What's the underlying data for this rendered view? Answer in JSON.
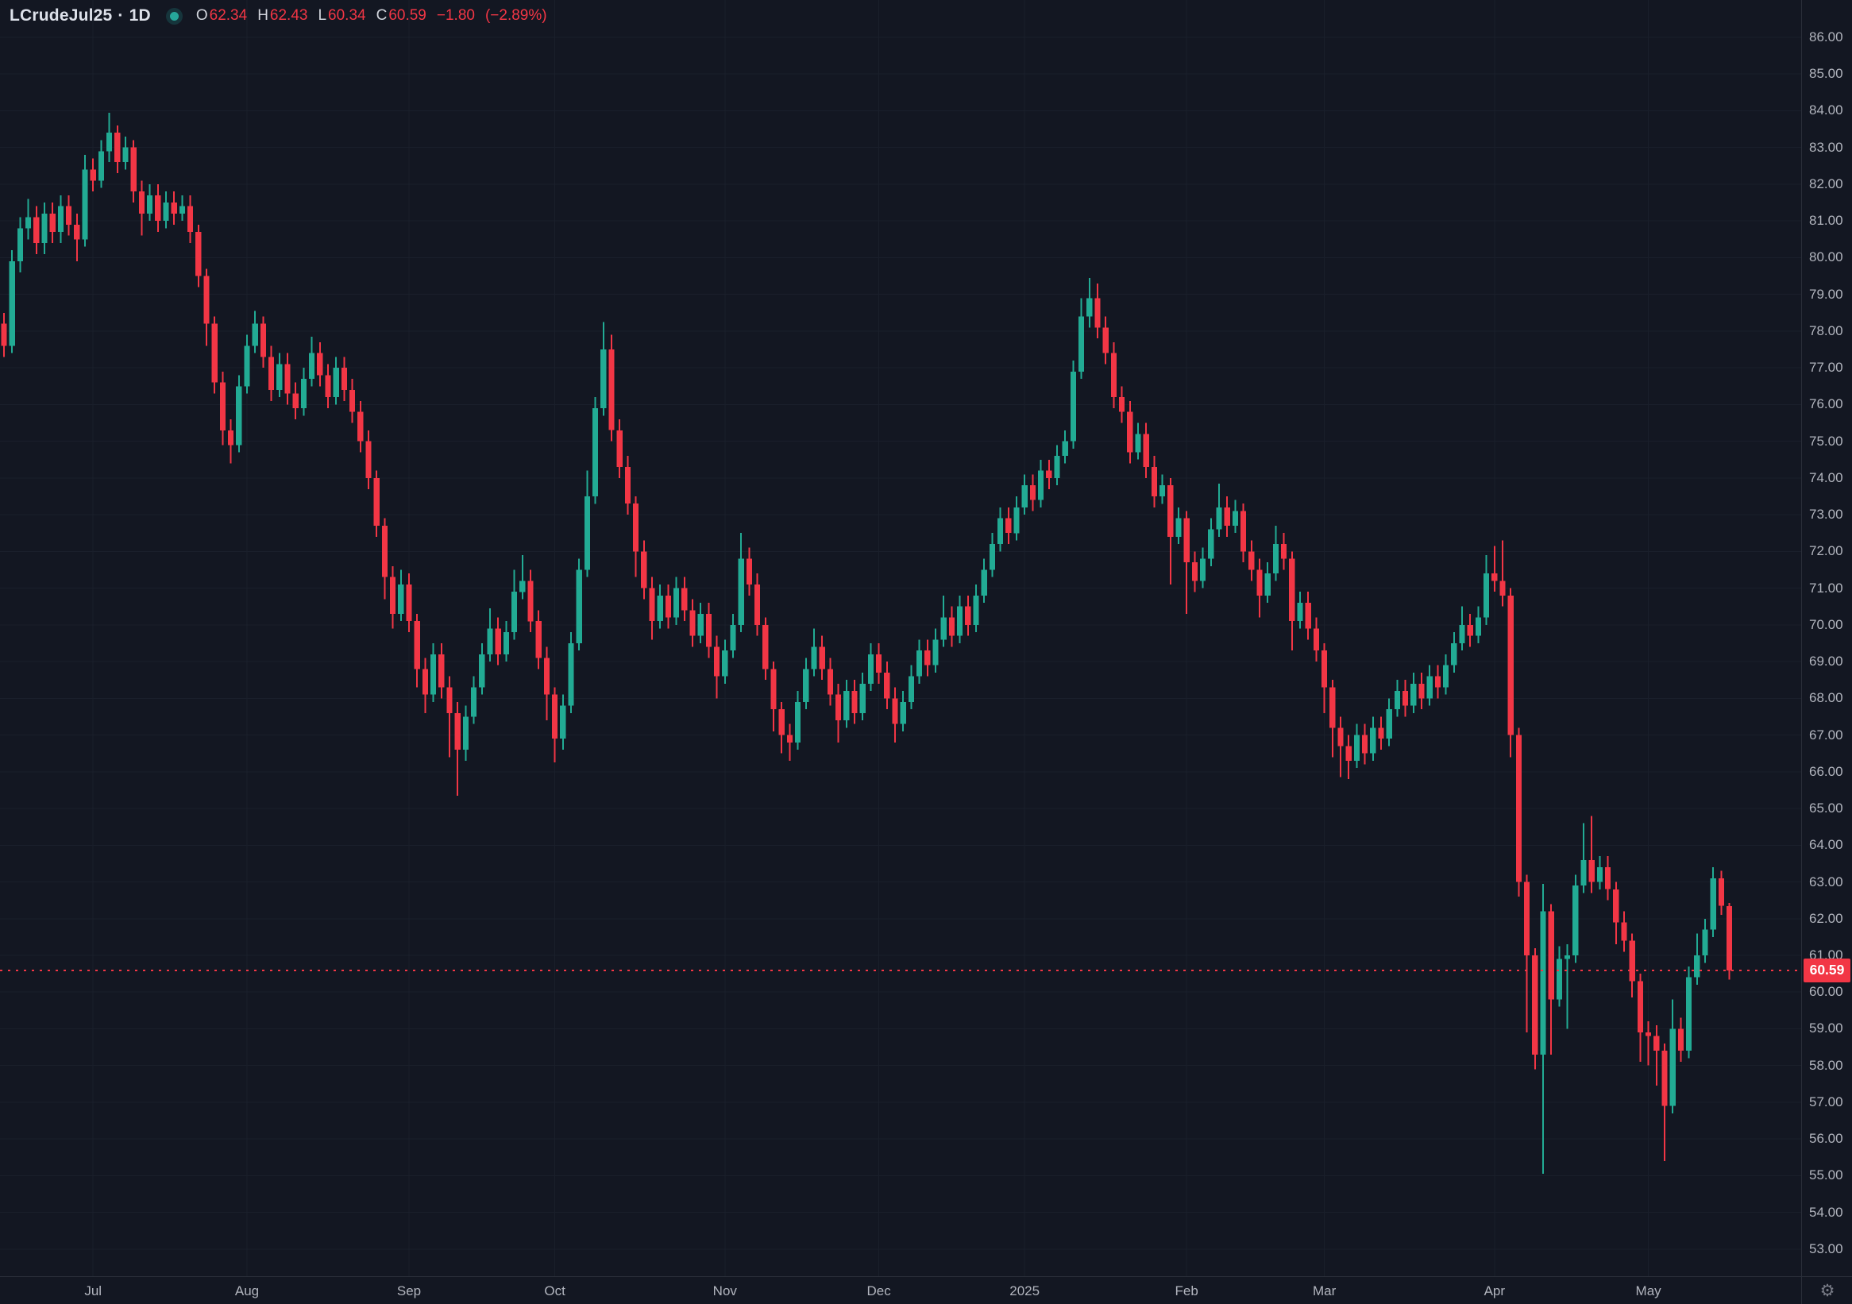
{
  "header": {
    "symbol": "LCrudeJul25",
    "separator": "·",
    "interval": "1D",
    "status_icon": "connection-dot",
    "ohlc": {
      "o_label": "O",
      "o": "62.34",
      "h_label": "H",
      "h": "62.43",
      "l_label": "L",
      "l": "60.34",
      "c_label": "C",
      "c": "60.59",
      "change": "−1.80",
      "change_pct": "(−2.89%)"
    }
  },
  "price_axis": {
    "labels": [
      "86.00",
      "85.00",
      "84.00",
      "83.00",
      "82.00",
      "81.00",
      "80.00",
      "79.00",
      "78.00",
      "77.00",
      "76.00",
      "75.00",
      "74.00",
      "73.00",
      "72.00",
      "71.00",
      "70.00",
      "69.00",
      "68.00",
      "67.00",
      "66.00",
      "65.00",
      "64.00",
      "63.00",
      "62.00",
      "61.00",
      "60.00",
      "59.00",
      "58.00",
      "57.00",
      "56.00",
      "55.00",
      "54.00",
      "53.00"
    ],
    "badge": {
      "value": "60.59"
    }
  },
  "time_axis": {
    "labels": [
      {
        "label": "Jul",
        "bar": 11
      },
      {
        "label": "Aug",
        "bar": 30
      },
      {
        "label": "Sep",
        "bar": 50
      },
      {
        "label": "Oct",
        "bar": 68
      },
      {
        "label": "Nov",
        "bar": 89
      },
      {
        "label": "Dec",
        "bar": 108
      },
      {
        "label": "2025",
        "bar": 126
      },
      {
        "label": "Feb",
        "bar": 146
      },
      {
        "label": "Mar",
        "bar": 163
      },
      {
        "label": "Apr",
        "bar": 184
      },
      {
        "label": "May",
        "bar": 203
      }
    ]
  },
  "icons": {
    "gear": "⚙",
    "status_dot": "connection-dot"
  },
  "colors": {
    "background": "#131722",
    "bull": "#22ab94",
    "bear": "#f23645",
    "axis_text": "#b2b5be",
    "header_text": "#dde1ea",
    "grid": "#1a1f2b",
    "separator": "#2a2e39",
    "price_line": "#f23645",
    "badge_bg": "#f23645",
    "badge_text": "#ffffff",
    "icon": "#787b86",
    "dot": "#26a69a"
  },
  "chart_data": {
    "type": "candlestick",
    "title": "LCrudeJul25 · 1D",
    "symbol": "LCrudeJul25",
    "interval": "1D",
    "last_open": 62.34,
    "last_high": 62.43,
    "last_low": 60.34,
    "last_close": 60.59,
    "change": -1.8,
    "change_pct": -2.89,
    "price_line": 60.59,
    "ylim": [
      52.3,
      87.0
    ],
    "y_ticks": [
      53,
      54,
      55,
      56,
      57,
      58,
      59,
      60,
      61,
      62,
      63,
      64,
      65,
      66,
      67,
      68,
      69,
      70,
      71,
      72,
      73,
      74,
      75,
      76,
      77,
      78,
      79,
      80,
      81,
      82,
      83,
      84,
      85,
      86
    ],
    "x_tick_labels": [
      "Jul",
      "Aug",
      "Sep",
      "Oct",
      "Nov",
      "Dec",
      "2025",
      "Feb",
      "Mar",
      "Apr",
      "May"
    ],
    "legend_position": "top-left",
    "grid": "faint",
    "candles": [
      [
        78.2,
        78.5,
        77.3,
        77.6
      ],
      [
        77.6,
        80.2,
        77.4,
        79.9
      ],
      [
        79.9,
        81.1,
        79.6,
        80.8
      ],
      [
        80.8,
        81.6,
        80.5,
        81.1
      ],
      [
        81.1,
        81.4,
        80.1,
        80.4
      ],
      [
        80.4,
        81.5,
        80.1,
        81.2
      ],
      [
        81.2,
        81.5,
        80.4,
        80.7
      ],
      [
        80.7,
        81.7,
        80.4,
        81.4
      ],
      [
        81.4,
        81.7,
        80.6,
        80.9
      ],
      [
        80.9,
        81.2,
        79.9,
        80.5
      ],
      [
        80.5,
        82.8,
        80.3,
        82.4
      ],
      [
        82.4,
        82.7,
        81.8,
        82.1
      ],
      [
        82.1,
        83.2,
        81.9,
        82.9
      ],
      [
        82.9,
        83.95,
        82.6,
        83.4
      ],
      [
        83.4,
        83.6,
        82.3,
        82.6
      ],
      [
        82.6,
        83.3,
        82.4,
        83.0
      ],
      [
        83.0,
        83.2,
        81.5,
        81.8
      ],
      [
        81.8,
        82.1,
        80.6,
        81.2
      ],
      [
        81.2,
        82.0,
        81.0,
        81.7
      ],
      [
        81.7,
        82.0,
        80.7,
        81.0
      ],
      [
        81.0,
        81.8,
        80.8,
        81.5
      ],
      [
        81.5,
        81.8,
        80.9,
        81.2
      ],
      [
        81.2,
        81.7,
        81.0,
        81.4
      ],
      [
        81.4,
        81.7,
        80.4,
        80.7
      ],
      [
        80.7,
        80.9,
        79.2,
        79.5
      ],
      [
        79.5,
        79.7,
        77.6,
        78.2
      ],
      [
        78.2,
        78.4,
        76.3,
        76.6
      ],
      [
        76.6,
        76.9,
        74.9,
        75.3
      ],
      [
        75.3,
        75.6,
        74.4,
        74.9
      ],
      [
        74.9,
        76.8,
        74.7,
        76.5
      ],
      [
        76.5,
        77.9,
        76.3,
        77.6
      ],
      [
        77.6,
        78.55,
        77.4,
        78.2
      ],
      [
        78.2,
        78.4,
        77.0,
        77.3
      ],
      [
        77.3,
        77.6,
        76.1,
        76.4
      ],
      [
        76.4,
        77.4,
        76.2,
        77.1
      ],
      [
        77.1,
        77.4,
        76.0,
        76.3
      ],
      [
        76.3,
        76.6,
        75.6,
        75.9
      ],
      [
        75.9,
        77.0,
        75.7,
        76.7
      ],
      [
        76.7,
        77.85,
        76.5,
        77.4
      ],
      [
        77.4,
        77.7,
        76.5,
        76.8
      ],
      [
        76.8,
        77.1,
        75.9,
        76.2
      ],
      [
        76.2,
        77.3,
        76.0,
        77.0
      ],
      [
        77.0,
        77.3,
        76.1,
        76.4
      ],
      [
        76.4,
        76.7,
        75.5,
        75.8
      ],
      [
        75.8,
        76.1,
        74.7,
        75.0
      ],
      [
        75.0,
        75.3,
        73.7,
        74.0
      ],
      [
        74.0,
        74.2,
        72.4,
        72.7
      ],
      [
        72.7,
        72.9,
        70.7,
        71.3
      ],
      [
        71.3,
        71.6,
        69.9,
        70.3
      ],
      [
        70.3,
        71.5,
        70.1,
        71.1
      ],
      [
        71.1,
        71.4,
        69.8,
        70.1
      ],
      [
        70.1,
        70.3,
        68.3,
        68.8
      ],
      [
        68.8,
        69.1,
        67.6,
        68.1
      ],
      [
        68.1,
        69.5,
        67.9,
        69.2
      ],
      [
        69.2,
        69.5,
        68.0,
        68.3
      ],
      [
        68.3,
        68.6,
        66.4,
        67.6
      ],
      [
        67.6,
        67.9,
        65.35,
        66.6
      ],
      [
        66.6,
        67.8,
        66.3,
        67.5
      ],
      [
        67.5,
        68.6,
        67.3,
        68.3
      ],
      [
        68.3,
        69.5,
        68.1,
        69.2
      ],
      [
        69.2,
        70.45,
        69.0,
        69.9
      ],
      [
        69.9,
        70.2,
        68.9,
        69.2
      ],
      [
        69.2,
        70.1,
        69.0,
        69.8
      ],
      [
        69.8,
        71.5,
        69.6,
        70.9
      ],
      [
        70.9,
        71.9,
        70.7,
        71.2
      ],
      [
        71.2,
        71.5,
        69.8,
        70.1
      ],
      [
        70.1,
        70.4,
        68.8,
        69.1
      ],
      [
        69.1,
        69.4,
        67.4,
        68.1
      ],
      [
        68.1,
        68.3,
        66.25,
        66.9
      ],
      [
        66.9,
        68.1,
        66.6,
        67.8
      ],
      [
        67.8,
        69.8,
        67.6,
        69.5
      ],
      [
        69.5,
        71.8,
        69.3,
        71.5
      ],
      [
        71.5,
        74.2,
        71.3,
        73.5
      ],
      [
        73.5,
        76.2,
        73.3,
        75.9
      ],
      [
        75.9,
        78.25,
        75.7,
        77.5
      ],
      [
        77.5,
        77.9,
        75.0,
        75.3
      ],
      [
        75.3,
        75.6,
        74.0,
        74.3
      ],
      [
        74.3,
        74.6,
        73.0,
        73.3
      ],
      [
        73.3,
        73.5,
        71.3,
        72.0
      ],
      [
        72.0,
        72.3,
        70.7,
        71.0
      ],
      [
        71.0,
        71.3,
        69.6,
        70.1
      ],
      [
        70.1,
        71.1,
        69.9,
        70.8
      ],
      [
        70.8,
        71.1,
        69.9,
        70.2
      ],
      [
        70.2,
        71.3,
        70.0,
        71.0
      ],
      [
        71.0,
        71.3,
        70.1,
        70.4
      ],
      [
        70.4,
        70.7,
        69.4,
        69.7
      ],
      [
        69.7,
        70.6,
        69.5,
        70.3
      ],
      [
        70.3,
        70.6,
        69.1,
        69.4
      ],
      [
        69.4,
        69.7,
        68.0,
        68.6
      ],
      [
        68.6,
        69.6,
        68.4,
        69.3
      ],
      [
        69.3,
        70.3,
        69.1,
        70.0
      ],
      [
        70.0,
        72.5,
        69.8,
        71.8
      ],
      [
        71.8,
        72.1,
        70.8,
        71.1
      ],
      [
        71.1,
        71.4,
        69.7,
        70.0
      ],
      [
        70.0,
        70.2,
        68.5,
        68.8
      ],
      [
        68.8,
        69.0,
        67.1,
        67.7
      ],
      [
        67.7,
        67.9,
        66.5,
        67.0
      ],
      [
        67.0,
        67.3,
        66.3,
        66.8
      ],
      [
        66.8,
        68.2,
        66.6,
        67.9
      ],
      [
        67.9,
        69.1,
        67.7,
        68.8
      ],
      [
        68.8,
        69.9,
        68.6,
        69.4
      ],
      [
        69.4,
        69.7,
        68.5,
        68.8
      ],
      [
        68.8,
        69.1,
        67.8,
        68.1
      ],
      [
        68.1,
        68.4,
        66.8,
        67.4
      ],
      [
        67.4,
        68.5,
        67.2,
        68.2
      ],
      [
        68.2,
        68.5,
        67.3,
        67.6
      ],
      [
        67.6,
        68.7,
        67.4,
        68.4
      ],
      [
        68.4,
        69.5,
        68.2,
        69.2
      ],
      [
        69.2,
        69.5,
        68.4,
        68.7
      ],
      [
        68.7,
        69.0,
        67.7,
        68.0
      ],
      [
        68.0,
        68.3,
        66.8,
        67.3
      ],
      [
        67.3,
        68.2,
        67.1,
        67.9
      ],
      [
        67.9,
        68.9,
        67.7,
        68.6
      ],
      [
        68.6,
        69.6,
        68.4,
        69.3
      ],
      [
        69.3,
        69.6,
        68.6,
        68.9
      ],
      [
        68.9,
        69.9,
        68.7,
        69.6
      ],
      [
        69.6,
        70.8,
        69.4,
        70.2
      ],
      [
        70.2,
        70.5,
        69.4,
        69.7
      ],
      [
        69.7,
        70.8,
        69.5,
        70.5
      ],
      [
        70.5,
        70.8,
        69.7,
        70.0
      ],
      [
        70.0,
        71.1,
        69.8,
        70.8
      ],
      [
        70.8,
        71.8,
        70.6,
        71.5
      ],
      [
        71.5,
        72.5,
        71.3,
        72.2
      ],
      [
        72.2,
        73.2,
        72.0,
        72.9
      ],
      [
        72.9,
        73.2,
        72.2,
        72.5
      ],
      [
        72.5,
        73.5,
        72.3,
        73.2
      ],
      [
        73.2,
        74.1,
        73.0,
        73.8
      ],
      [
        73.8,
        74.1,
        73.1,
        73.4
      ],
      [
        73.4,
        74.5,
        73.2,
        74.2
      ],
      [
        74.2,
        74.5,
        73.7,
        74.0
      ],
      [
        74.0,
        74.9,
        73.8,
        74.6
      ],
      [
        74.6,
        75.3,
        74.4,
        75.0
      ],
      [
        75.0,
        77.2,
        74.8,
        76.9
      ],
      [
        76.9,
        78.9,
        76.7,
        78.4
      ],
      [
        78.4,
        79.45,
        78.1,
        78.9
      ],
      [
        78.9,
        79.3,
        77.8,
        78.1
      ],
      [
        78.1,
        78.4,
        77.1,
        77.4
      ],
      [
        77.4,
        77.7,
        75.9,
        76.2
      ],
      [
        76.2,
        76.5,
        75.5,
        75.8
      ],
      [
        75.8,
        76.1,
        74.4,
        74.7
      ],
      [
        74.7,
        75.5,
        74.5,
        75.2
      ],
      [
        75.2,
        75.5,
        74.0,
        74.3
      ],
      [
        74.3,
        74.6,
        73.2,
        73.5
      ],
      [
        73.5,
        74.1,
        73.3,
        73.8
      ],
      [
        73.8,
        74.0,
        71.1,
        72.4
      ],
      [
        72.4,
        73.2,
        72.2,
        72.9
      ],
      [
        72.9,
        73.1,
        70.3,
        71.7
      ],
      [
        71.7,
        72.0,
        70.9,
        71.2
      ],
      [
        71.2,
        72.1,
        71.0,
        71.8
      ],
      [
        71.8,
        72.9,
        71.6,
        72.6
      ],
      [
        72.6,
        73.85,
        72.4,
        73.2
      ],
      [
        73.2,
        73.5,
        72.4,
        72.7
      ],
      [
        72.7,
        73.4,
        72.5,
        73.1
      ],
      [
        73.1,
        73.3,
        71.7,
        72.0
      ],
      [
        72.0,
        72.3,
        71.2,
        71.5
      ],
      [
        71.5,
        71.8,
        70.2,
        70.8
      ],
      [
        70.8,
        71.7,
        70.6,
        71.4
      ],
      [
        71.4,
        72.7,
        71.2,
        72.2
      ],
      [
        72.2,
        72.5,
        71.5,
        71.8
      ],
      [
        71.8,
        72.0,
        69.3,
        70.1
      ],
      [
        70.1,
        70.9,
        69.9,
        70.6
      ],
      [
        70.6,
        70.9,
        69.6,
        69.9
      ],
      [
        69.9,
        70.2,
        69.0,
        69.3
      ],
      [
        69.3,
        69.5,
        67.6,
        68.3
      ],
      [
        68.3,
        68.5,
        66.4,
        67.2
      ],
      [
        67.2,
        67.5,
        65.85,
        66.7
      ],
      [
        66.7,
        67.0,
        65.8,
        66.3
      ],
      [
        66.3,
        67.3,
        66.1,
        67.0
      ],
      [
        67.0,
        67.3,
        66.2,
        66.5
      ],
      [
        66.5,
        67.5,
        66.3,
        67.2
      ],
      [
        67.2,
        67.5,
        66.6,
        66.9
      ],
      [
        66.9,
        68.0,
        66.7,
        67.7
      ],
      [
        67.7,
        68.5,
        67.5,
        68.2
      ],
      [
        68.2,
        68.5,
        67.5,
        67.8
      ],
      [
        67.8,
        68.7,
        67.6,
        68.4
      ],
      [
        68.4,
        68.7,
        67.7,
        68.0
      ],
      [
        68.0,
        68.9,
        67.8,
        68.6
      ],
      [
        68.6,
        68.9,
        68.0,
        68.3
      ],
      [
        68.3,
        69.2,
        68.1,
        68.9
      ],
      [
        68.9,
        69.8,
        68.7,
        69.5
      ],
      [
        69.5,
        70.5,
        69.3,
        70.0
      ],
      [
        70.0,
        70.3,
        69.4,
        69.7
      ],
      [
        69.7,
        70.5,
        69.5,
        70.2
      ],
      [
        70.2,
        71.9,
        70.0,
        71.4
      ],
      [
        71.4,
        72.15,
        70.9,
        71.2
      ],
      [
        71.2,
        72.3,
        70.5,
        70.8
      ],
      [
        70.8,
        71.0,
        66.4,
        67.0
      ],
      [
        67.0,
        67.2,
        62.6,
        63.0
      ],
      [
        63.0,
        63.2,
        58.9,
        61.0
      ],
      [
        61.0,
        61.2,
        57.9,
        58.3
      ],
      [
        58.3,
        62.95,
        55.05,
        62.2
      ],
      [
        62.2,
        62.4,
        58.3,
        59.8
      ],
      [
        59.8,
        61.25,
        59.6,
        60.9
      ],
      [
        60.9,
        61.3,
        59.0,
        61.0
      ],
      [
        61.0,
        63.2,
        60.8,
        62.9
      ],
      [
        62.9,
        64.6,
        62.7,
        63.6
      ],
      [
        63.6,
        64.8,
        62.7,
        63.0
      ],
      [
        63.0,
        63.7,
        62.8,
        63.4
      ],
      [
        63.4,
        63.7,
        62.5,
        62.8
      ],
      [
        62.8,
        63.0,
        61.3,
        61.9
      ],
      [
        61.9,
        62.2,
        61.1,
        61.4
      ],
      [
        61.4,
        61.6,
        59.85,
        60.3
      ],
      [
        60.3,
        60.5,
        58.1,
        58.9
      ],
      [
        58.9,
        59.2,
        58.0,
        58.8
      ],
      [
        58.8,
        59.1,
        57.45,
        58.4
      ],
      [
        58.4,
        58.6,
        55.4,
        56.9
      ],
      [
        56.9,
        59.8,
        56.7,
        59.0
      ],
      [
        59.0,
        59.3,
        58.1,
        58.4
      ],
      [
        58.4,
        60.7,
        58.2,
        60.4
      ],
      [
        60.4,
        61.6,
        60.2,
        61.0
      ],
      [
        61.0,
        62.0,
        60.8,
        61.7
      ],
      [
        61.7,
        63.4,
        61.5,
        63.1
      ],
      [
        63.1,
        63.3,
        62.1,
        62.35
      ],
      [
        62.34,
        62.43,
        60.34,
        60.59
      ]
    ]
  }
}
